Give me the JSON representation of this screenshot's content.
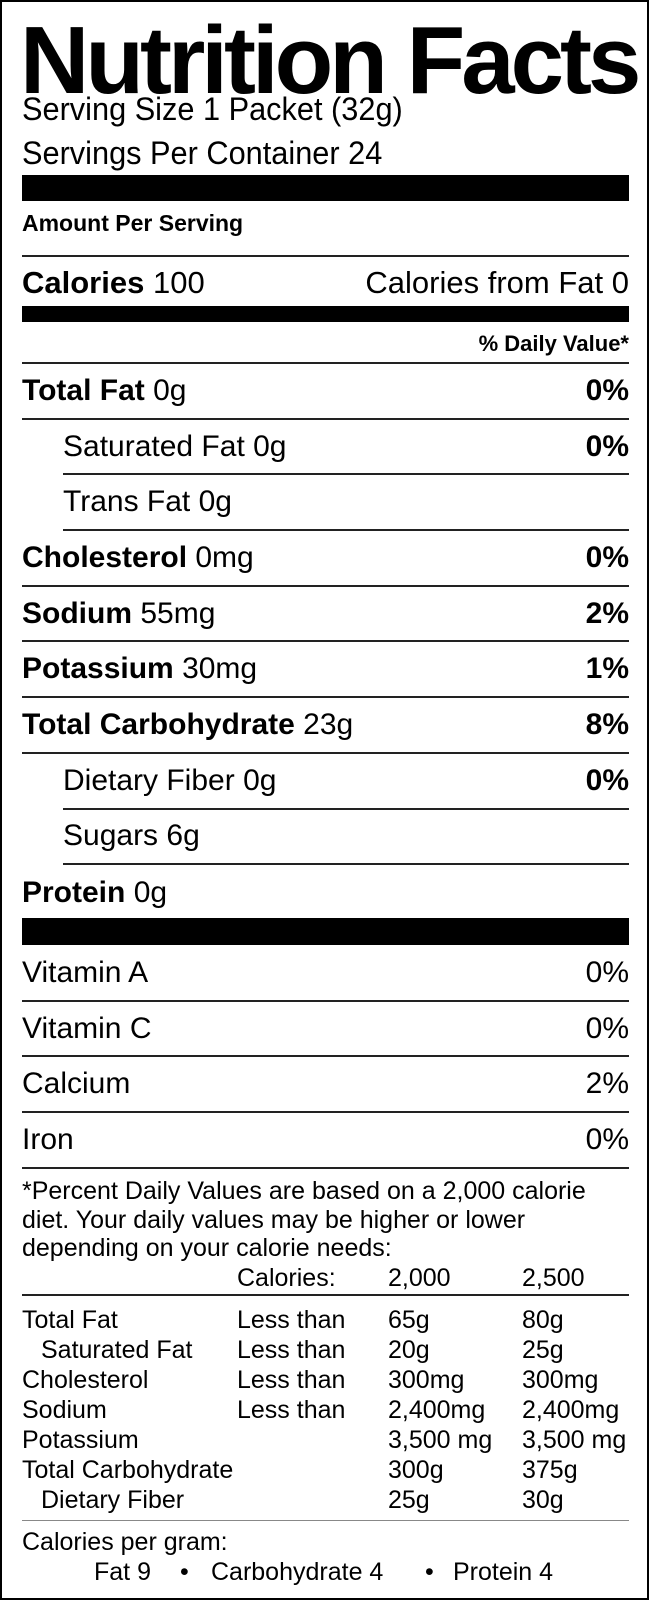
{
  "title": "Nutrition Facts",
  "serving_size": "Serving Size 1 Packet (32g)",
  "servings_per_container": "Servings Per Container 24",
  "amount_per_serving": "Amount Per Serving",
  "calories": {
    "label": "Calories",
    "value": "100",
    "from_fat": "Calories from Fat 0"
  },
  "daily_value_header": "% Daily Value*",
  "nutrients": [
    {
      "name": "Total Fat",
      "amount": "0g",
      "dv": "0%",
      "sub": false
    },
    {
      "name": "Saturated Fat",
      "amount": "0g",
      "dv": "0%",
      "sub": true
    },
    {
      "name": "Trans Fat",
      "amount": "0g",
      "dv": "",
      "sub": true
    },
    {
      "name": "Cholesterol",
      "amount": "0mg",
      "dv": "0%",
      "sub": false
    },
    {
      "name": "Sodium",
      "amount": "55mg",
      "dv": "2%",
      "sub": false
    },
    {
      "name": "Potassium",
      "amount": "30mg",
      "dv": "1%",
      "sub": false
    },
    {
      "name": "Total Carbohydrate",
      "amount": "23g",
      "dv": "8%",
      "sub": false
    },
    {
      "name": "Dietary Fiber",
      "amount": "0g",
      "dv": "0%",
      "sub": true
    },
    {
      "name": "Sugars",
      "amount": "6g",
      "dv": "",
      "sub": true
    },
    {
      "name": "Protein",
      "amount": "0g",
      "dv": "",
      "sub": false
    }
  ],
  "vitamins": [
    {
      "name": "Vitamin A",
      "dv": "0%"
    },
    {
      "name": "Vitamin C",
      "dv": "0%"
    },
    {
      "name": "Calcium",
      "dv": "2%"
    },
    {
      "name": "Iron",
      "dv": "0%"
    }
  ],
  "footnote": {
    "lines": [
      "*Percent Daily Values are based on a 2,000 calorie",
      "diet. Your daily values may be higher or lower",
      "depending on your calorie needs:"
    ],
    "header": [
      "Calories:",
      "2,000",
      "2,500"
    ],
    "rows": [
      {
        "name": "Total Fat",
        "qual": "Less than",
        "a": "65g",
        "b": "80g",
        "sub": false
      },
      {
        "name": "Saturated Fat",
        "qual": "Less than",
        "a": "20g",
        "b": "25g",
        "sub": true
      },
      {
        "name": "Cholesterol",
        "qual": "Less than",
        "a": "300mg",
        "b": "300mg",
        "sub": false
      },
      {
        "name": "Sodium",
        "qual": "Less than",
        "a": "2,400mg",
        "b": "2,400mg",
        "sub": false
      },
      {
        "name": "Potassium",
        "qual": "",
        "a": "3,500 mg",
        "b": "3,500 mg",
        "sub": false
      },
      {
        "name": "Total Carbohydrate",
        "qual": "",
        "a": "300g",
        "b": "375g",
        "sub": false
      },
      {
        "name": "Dietary Fiber",
        "qual": "",
        "a": "25g",
        "b": "30g",
        "sub": true
      }
    ],
    "per_gram_label": "Calories per gram:",
    "per_gram": [
      "Fat 9",
      "Carbohydrate 4",
      "Protein 4"
    ],
    "bullet": "•"
  }
}
